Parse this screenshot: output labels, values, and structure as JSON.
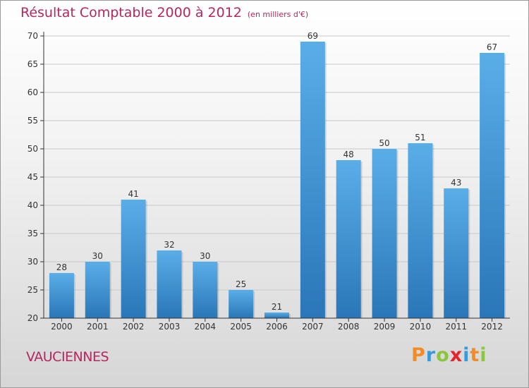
{
  "header": {
    "title": "Résultat Comptable 2000 à 2012",
    "unit": "(en milliers d'€)"
  },
  "footer": {
    "commune": "VAUCIENNES",
    "logo_text": "Proxiti",
    "logo_letters": [
      {
        "ch": "P",
        "color": "#f28c28"
      },
      {
        "ch": "r",
        "color": "#3a9ad9"
      },
      {
        "ch": "o",
        "color": "#8cc63f"
      },
      {
        "ch": "x",
        "color": "#e8232a"
      },
      {
        "ch": "i",
        "color": "#3a9ad9"
      },
      {
        "ch": "t",
        "color": "#f28c28"
      },
      {
        "ch": "i",
        "color": "#8cc63f"
      }
    ]
  },
  "colors": {
    "title": "#b5275f",
    "bar_top": "#5aaee8",
    "bar_bottom": "#2a76b8",
    "axis": "#333333",
    "grid": "#c8c8c8"
  },
  "chart_data": {
    "type": "bar",
    "title": "Résultat Comptable 2000 à 2012",
    "subtitle": "(en milliers d'€)",
    "xlabel": "",
    "ylabel": "",
    "categories": [
      "2000",
      "2001",
      "2002",
      "2003",
      "2004",
      "2005",
      "2006",
      "2007",
      "2008",
      "2009",
      "2010",
      "2011",
      "2012"
    ],
    "values": [
      28,
      30,
      41,
      32,
      30,
      25,
      21,
      69,
      48,
      50,
      51,
      43,
      67
    ],
    "ylim": [
      20,
      70
    ],
    "yticks": [
      20,
      25,
      30,
      35,
      40,
      45,
      50,
      55,
      60,
      65,
      70
    ],
    "grid": true,
    "legend": "none"
  }
}
